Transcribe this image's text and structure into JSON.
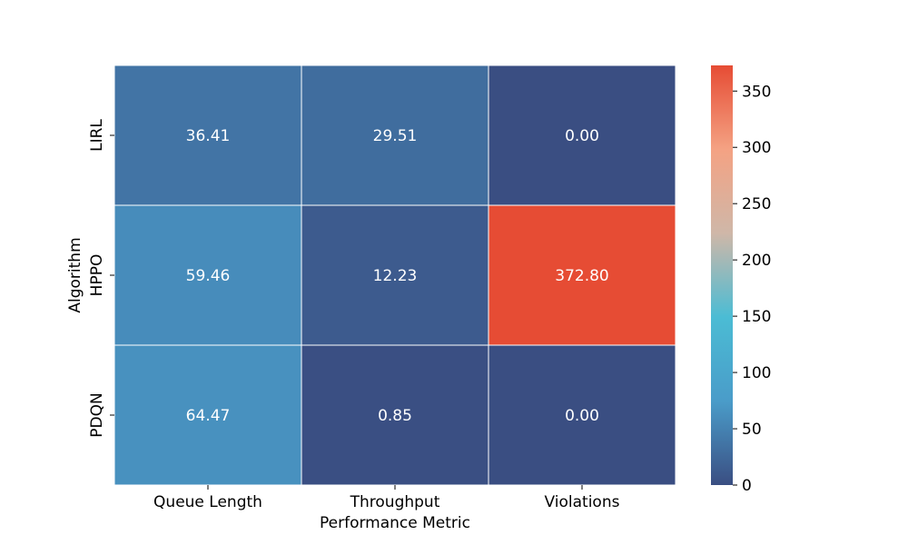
{
  "chart_data": {
    "type": "heatmap",
    "title": "",
    "xlabel": "Performance Metric",
    "ylabel": "Algorithm",
    "columns": [
      "Queue Length",
      "Throughput",
      "Violations"
    ],
    "rows": [
      "LIRL",
      "HPPO",
      "PDQN"
    ],
    "values": [
      [
        36.41,
        29.51,
        0.0
      ],
      [
        59.46,
        12.23,
        372.8
      ],
      [
        64.47,
        0.85,
        0.0
      ]
    ],
    "value_labels": [
      [
        "36.41",
        "29.51",
        "0.00"
      ],
      [
        "59.46",
        "12.23",
        "372.80"
      ],
      [
        "64.47",
        "0.85",
        "0.00"
      ]
    ],
    "color_range": [
      0,
      372.8
    ],
    "colorbar_ticks": [
      0,
      50,
      100,
      150,
      200,
      250,
      300,
      350
    ],
    "colormap": [
      "#3a4e82",
      "#4a9cc9",
      "#4bbcd4",
      "#cfb7a8",
      "#f4a283",
      "#e64c34"
    ],
    "grid": false,
    "legend": "colorbar-right"
  }
}
